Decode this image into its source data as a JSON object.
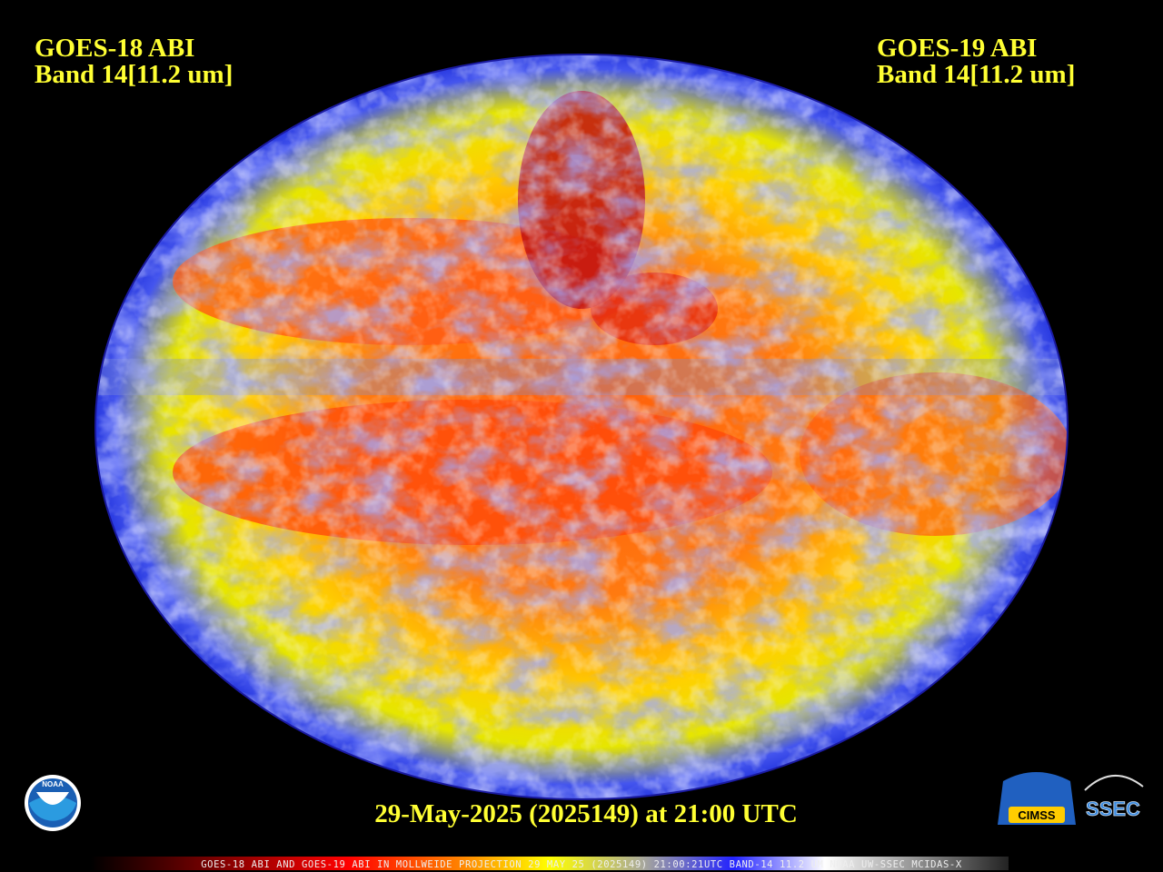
{
  "header": {
    "left": [
      "GOES-18 ABI",
      "Band 14[11.2 um]"
    ],
    "right": [
      "GOES-19 ABI",
      "Band 14[11.2 um]"
    ]
  },
  "timestamp": "29-May-2025 (2025149) at 21:00 UTC",
  "footer": "GOES-18 ABI AND GOES-19 ABI IN MOLLWEIDE PROJECTION 29 MAY 25 (2025149) 21:00:21UTC BAND-14 11.2 UM NOAA UW-SSEC MCIDAS-X",
  "logos": {
    "noaa": "NOAA",
    "cimss": "CIMSS",
    "ssec": "SSEC"
  }
}
